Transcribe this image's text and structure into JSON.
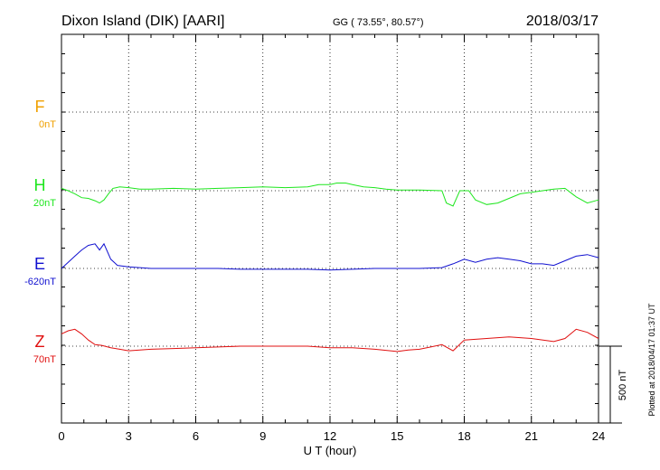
{
  "header": {
    "station": "Dixon Island (DIK)  [AARI]",
    "coords": "GG ( 73.55°,  80.57°)",
    "date": "2018/03/17"
  },
  "footer": {
    "plotted": "Plotted at 2018/04/17 01:37 UT"
  },
  "colors": {
    "F": "#f0a000",
    "H": "#1ee61e",
    "E": "#1010d0",
    "Z": "#e01010",
    "axis": "#000000"
  },
  "chart_data": {
    "type": "line",
    "title": "Dixon Island (DIK)  [AARI]",
    "xlabel": "U T (hour)",
    "ylabel": "",
    "xlim": [
      0,
      24
    ],
    "x_ticks": [
      0,
      3,
      6,
      9,
      12,
      15,
      18,
      21,
      24
    ],
    "x_tick_labels": [
      "0",
      "3",
      "6",
      "9",
      "12",
      "15",
      "18",
      "21",
      "24"
    ],
    "grid": true,
    "scale_bar": {
      "value": 500,
      "label": "500 nT"
    },
    "series": [
      {
        "name": "F",
        "baseline": "0nT",
        "baseline_nT": 0,
        "values": []
      },
      {
        "name": "H",
        "baseline": "20nT",
        "baseline_nT": 20,
        "points": [
          [
            0.0,
            15
          ],
          [
            0.3,
            0
          ],
          [
            0.6,
            -20
          ],
          [
            0.9,
            -45
          ],
          [
            1.2,
            -50
          ],
          [
            1.5,
            -65
          ],
          [
            1.7,
            -80
          ],
          [
            1.9,
            -60
          ],
          [
            2.1,
            -20
          ],
          [
            2.3,
            15
          ],
          [
            2.6,
            25
          ],
          [
            3.0,
            20
          ],
          [
            3.5,
            10
          ],
          [
            4.0,
            10
          ],
          [
            5.0,
            15
          ],
          [
            6.0,
            10
          ],
          [
            7.0,
            15
          ],
          [
            8.0,
            20
          ],
          [
            9.0,
            25
          ],
          [
            10.0,
            20
          ],
          [
            11.0,
            25
          ],
          [
            11.5,
            40
          ],
          [
            12.0,
            40
          ],
          [
            12.3,
            50
          ],
          [
            12.7,
            50
          ],
          [
            13.0,
            40
          ],
          [
            13.5,
            25
          ],
          [
            14.0,
            20
          ],
          [
            14.5,
            10
          ],
          [
            15.0,
            5
          ],
          [
            16.0,
            5
          ],
          [
            17.0,
            0
          ],
          [
            17.2,
            -80
          ],
          [
            17.5,
            -100
          ],
          [
            17.8,
            0
          ],
          [
            18.2,
            0
          ],
          [
            18.5,
            -60
          ],
          [
            19.0,
            -90
          ],
          [
            19.5,
            -80
          ],
          [
            20.0,
            -50
          ],
          [
            20.5,
            -20
          ],
          [
            21.0,
            -10
          ],
          [
            21.5,
            0
          ],
          [
            22.0,
            10
          ],
          [
            22.5,
            15
          ],
          [
            23.0,
            -40
          ],
          [
            23.5,
            -80
          ],
          [
            24.0,
            -60
          ]
        ]
      },
      {
        "name": "E",
        "baseline": "-620nT",
        "baseline_nT": -620,
        "points": [
          [
            0.0,
            0
          ],
          [
            0.3,
            40
          ],
          [
            0.6,
            80
          ],
          [
            0.9,
            120
          ],
          [
            1.2,
            150
          ],
          [
            1.5,
            160
          ],
          [
            1.7,
            120
          ],
          [
            1.9,
            160
          ],
          [
            2.2,
            60
          ],
          [
            2.5,
            20
          ],
          [
            3.0,
            10
          ],
          [
            3.5,
            5
          ],
          [
            4.0,
            0
          ],
          [
            5.0,
            0
          ],
          [
            6.0,
            0
          ],
          [
            7.0,
            0
          ],
          [
            8.0,
            -5
          ],
          [
            9.0,
            -5
          ],
          [
            10.0,
            -5
          ],
          [
            11.0,
            -5
          ],
          [
            12.0,
            -10
          ],
          [
            13.0,
            -5
          ],
          [
            14.0,
            0
          ],
          [
            15.0,
            0
          ],
          [
            16.0,
            0
          ],
          [
            17.0,
            5
          ],
          [
            17.5,
            30
          ],
          [
            18.0,
            60
          ],
          [
            18.5,
            40
          ],
          [
            19.0,
            60
          ],
          [
            19.5,
            70
          ],
          [
            20.0,
            60
          ],
          [
            20.5,
            50
          ],
          [
            21.0,
            30
          ],
          [
            21.5,
            30
          ],
          [
            22.0,
            20
          ],
          [
            22.5,
            50
          ],
          [
            23.0,
            80
          ],
          [
            23.5,
            90
          ],
          [
            24.0,
            70
          ]
        ]
      },
      {
        "name": "Z",
        "baseline": "70nT",
        "baseline_nT": 70,
        "points": [
          [
            0.0,
            80
          ],
          [
            0.3,
            100
          ],
          [
            0.6,
            110
          ],
          [
            0.9,
            80
          ],
          [
            1.2,
            40
          ],
          [
            1.5,
            10
          ],
          [
            1.8,
            5
          ],
          [
            2.2,
            -10
          ],
          [
            2.6,
            -20
          ],
          [
            3.0,
            -30
          ],
          [
            3.5,
            -25
          ],
          [
            4.0,
            -20
          ],
          [
            5.0,
            -15
          ],
          [
            6.0,
            -10
          ],
          [
            7.0,
            -5
          ],
          [
            8.0,
            0
          ],
          [
            9.0,
            0
          ],
          [
            10.0,
            0
          ],
          [
            11.0,
            0
          ],
          [
            12.0,
            -10
          ],
          [
            13.0,
            -10
          ],
          [
            14.0,
            -20
          ],
          [
            15.0,
            -35
          ],
          [
            15.5,
            -25
          ],
          [
            16.0,
            -20
          ],
          [
            16.5,
            -5
          ],
          [
            17.0,
            10
          ],
          [
            17.5,
            -30
          ],
          [
            18.0,
            40
          ],
          [
            19.0,
            50
          ],
          [
            20.0,
            60
          ],
          [
            21.0,
            50
          ],
          [
            22.0,
            30
          ],
          [
            22.5,
            50
          ],
          [
            23.0,
            110
          ],
          [
            23.5,
            90
          ],
          [
            24.0,
            50
          ]
        ]
      }
    ]
  }
}
